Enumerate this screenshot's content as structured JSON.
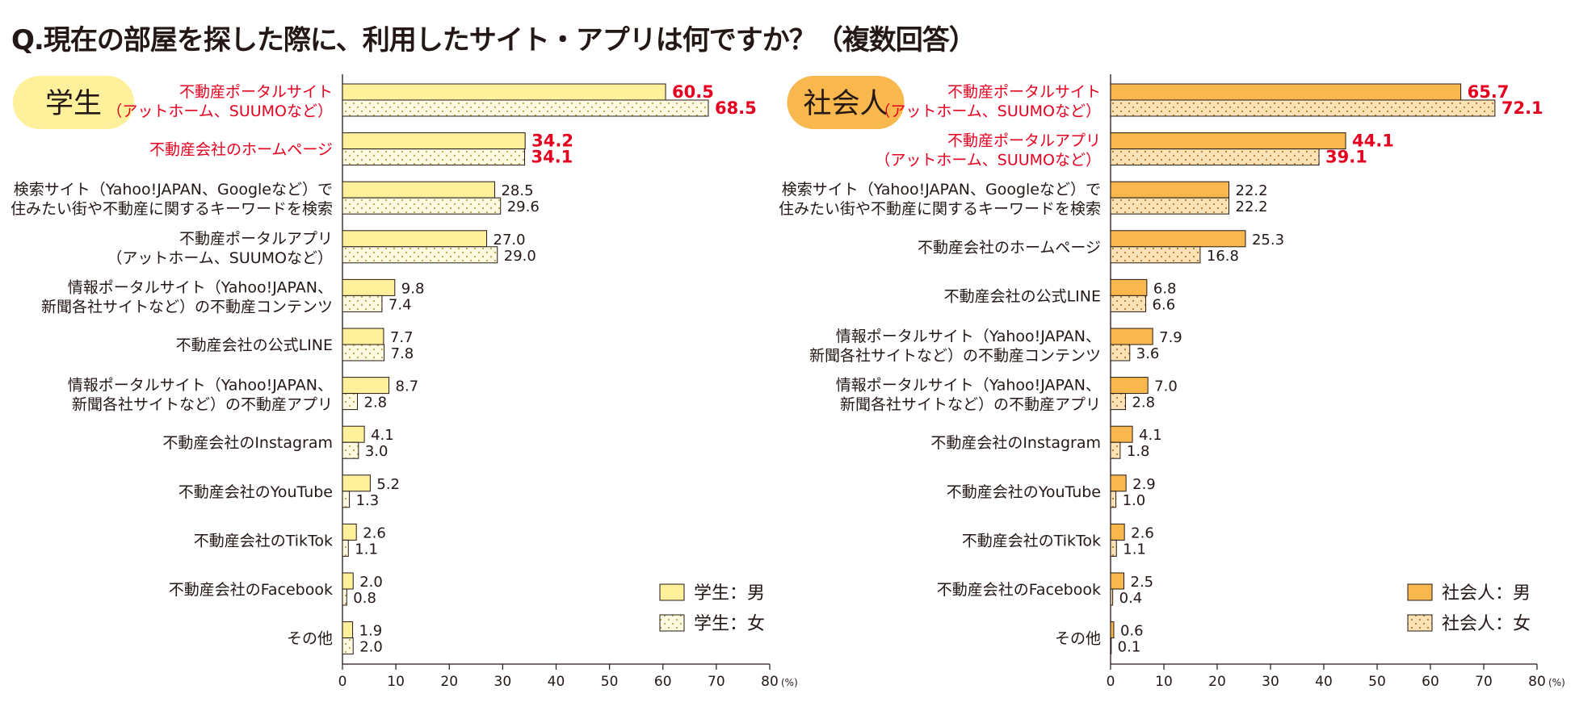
{
  "page": {
    "title": "Q.現在の部屋を探した際に、利用したサイト・アプリは何ですか？（複数回答）"
  },
  "colors": {
    "student": "#fff19c",
    "worker": "#f8b84e",
    "highlight": "#e6001f",
    "badge_student": "#fff19c",
    "badge_worker": "#f8b84e"
  },
  "chart_data": [
    {
      "type": "bar",
      "group": "学生",
      "xlim": [
        0,
        80
      ],
      "ticks": [
        0,
        10,
        20,
        30,
        40,
        50,
        60,
        70,
        80
      ],
      "unit": "(%)",
      "legend": [
        "学生：男",
        "学生：女"
      ],
      "categories": [
        {
          "lines": [
            "不動産ポータルサイト",
            "（アットホーム、SUUMOなど）"
          ],
          "highlight": true
        },
        {
          "lines": [
            "不動産会社のホームページ"
          ],
          "highlight": true
        },
        {
          "lines": [
            "検索サイト（Yahoo!JAPAN、Googleなど）で",
            "住みたい街や不動産に関するキーワードを検索"
          ],
          "highlight": false
        },
        {
          "lines": [
            "不動産ポータルアプリ",
            "（アットホーム、SUUMOなど）"
          ],
          "highlight": false
        },
        {
          "lines": [
            "情報ポータルサイト（Yahoo!JAPAN、",
            "新聞各社サイトなど）の不動産コンテンツ"
          ],
          "highlight": false
        },
        {
          "lines": [
            "不動産会社の公式LINE"
          ],
          "highlight": false
        },
        {
          "lines": [
            "情報ポータルサイト（Yahoo!JAPAN、",
            "新聞各社サイトなど）の不動産アプリ"
          ],
          "highlight": false
        },
        {
          "lines": [
            "不動産会社のInstagram"
          ],
          "highlight": false
        },
        {
          "lines": [
            "不動産会社のYouTube"
          ],
          "highlight": false
        },
        {
          "lines": [
            "不動産会社のTikTok"
          ],
          "highlight": false
        },
        {
          "lines": [
            "不動産会社のFacebook"
          ],
          "highlight": false
        },
        {
          "lines": [
            "その他"
          ],
          "highlight": false
        }
      ],
      "series": [
        {
          "name": "学生：男",
          "values": [
            60.5,
            34.2,
            28.5,
            27.0,
            9.8,
            7.7,
            8.7,
            4.1,
            5.2,
            2.6,
            2.0,
            1.9
          ]
        },
        {
          "name": "学生：女",
          "values": [
            68.5,
            34.1,
            29.6,
            29.0,
            7.4,
            7.8,
            2.8,
            3.0,
            1.3,
            1.1,
            0.8,
            2.0
          ]
        }
      ]
    },
    {
      "type": "bar",
      "group": "社会人",
      "xlim": [
        0,
        80
      ],
      "ticks": [
        0,
        10,
        20,
        30,
        40,
        50,
        60,
        70,
        80
      ],
      "unit": "(%)",
      "legend": [
        "社会人：男",
        "社会人：女"
      ],
      "categories": [
        {
          "lines": [
            "不動産ポータルサイト",
            "（アットホーム、SUUMOなど）"
          ],
          "highlight": true
        },
        {
          "lines": [
            "不動産ポータルアプリ",
            "（アットホーム、SUUMOなど）"
          ],
          "highlight": true
        },
        {
          "lines": [
            "検索サイト（Yahoo!JAPAN、Googleなど）で",
            "住みたい街や不動産に関するキーワードを検索"
          ],
          "highlight": false
        },
        {
          "lines": [
            "不動産会社のホームページ"
          ],
          "highlight": false
        },
        {
          "lines": [
            "不動産会社の公式LINE"
          ],
          "highlight": false
        },
        {
          "lines": [
            "情報ポータルサイト（Yahoo!JAPAN、",
            "新聞各社サイトなど）の不動産コンテンツ"
          ],
          "highlight": false
        },
        {
          "lines": [
            "情報ポータルサイト（Yahoo!JAPAN、",
            "新聞各社サイトなど）の不動産アプリ"
          ],
          "highlight": false
        },
        {
          "lines": [
            "不動産会社のInstagram"
          ],
          "highlight": false
        },
        {
          "lines": [
            "不動産会社のYouTube"
          ],
          "highlight": false
        },
        {
          "lines": [
            "不動産会社のTikTok"
          ],
          "highlight": false
        },
        {
          "lines": [
            "不動産会社のFacebook"
          ],
          "highlight": false
        },
        {
          "lines": [
            "その他"
          ],
          "highlight": false
        }
      ],
      "series": [
        {
          "name": "社会人：男",
          "values": [
            65.7,
            44.1,
            22.2,
            25.3,
            6.8,
            7.9,
            7.0,
            4.1,
            2.9,
            2.6,
            2.5,
            0.6
          ]
        },
        {
          "name": "社会人：女",
          "values": [
            72.1,
            39.1,
            22.2,
            16.8,
            6.6,
            3.6,
            2.8,
            1.8,
            1.0,
            1.1,
            0.4,
            0.1
          ]
        }
      ]
    }
  ]
}
